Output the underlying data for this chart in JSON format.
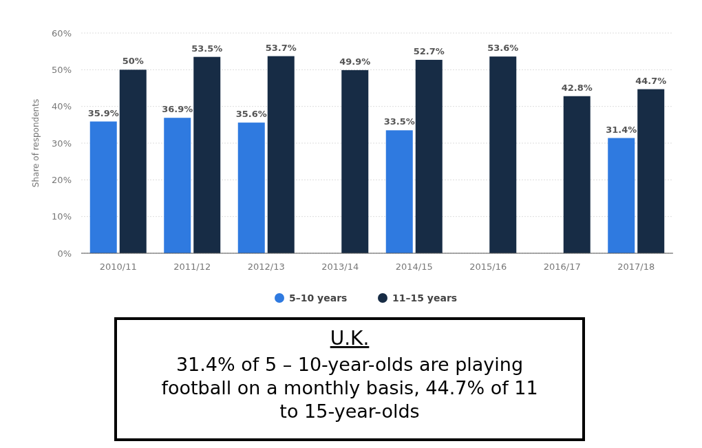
{
  "chart_data": {
    "type": "bar",
    "ylabel": "Share of respondents",
    "categories": [
      "2010/11",
      "2011/12",
      "2012/13",
      "2013/14",
      "2014/15",
      "2015/16",
      "2016/17",
      "2017/18"
    ],
    "series": [
      {
        "name": "5–10 years",
        "color": "#2f7ae0",
        "values": [
          35.9,
          36.9,
          35.6,
          null,
          33.5,
          null,
          null,
          31.4
        ],
        "value_labels": [
          "35.9%",
          "36.9%",
          "35.6%",
          null,
          "33.5%",
          null,
          null,
          "31.4%"
        ]
      },
      {
        "name": "11–15 years",
        "color": "#172c45",
        "values": [
          50,
          53.5,
          53.7,
          49.9,
          52.7,
          53.6,
          42.8,
          44.7
        ],
        "value_labels": [
          "50%",
          "53.5%",
          "53.7%",
          "49.9%",
          "52.7%",
          "53.6%",
          "42.8%",
          "44.7%"
        ]
      }
    ],
    "ylim": [
      0,
      60
    ],
    "yticks": [
      {
        "value": 0,
        "label": "0%"
      },
      {
        "value": 10,
        "label": "10%"
      },
      {
        "value": 20,
        "label": "20%"
      },
      {
        "value": 30,
        "label": "30%"
      },
      {
        "value": 40,
        "label": "40%"
      },
      {
        "value": 50,
        "label": "50%"
      },
      {
        "value": 60,
        "label": "60%"
      }
    ],
    "grid": "y",
    "legend": "bottom",
    "annotations": [
      "U.K.",
      "31.4% of 5 – 10-year-olds are playing football on a monthly basis, 44.7% of 11 to 15-year-olds"
    ]
  }
}
